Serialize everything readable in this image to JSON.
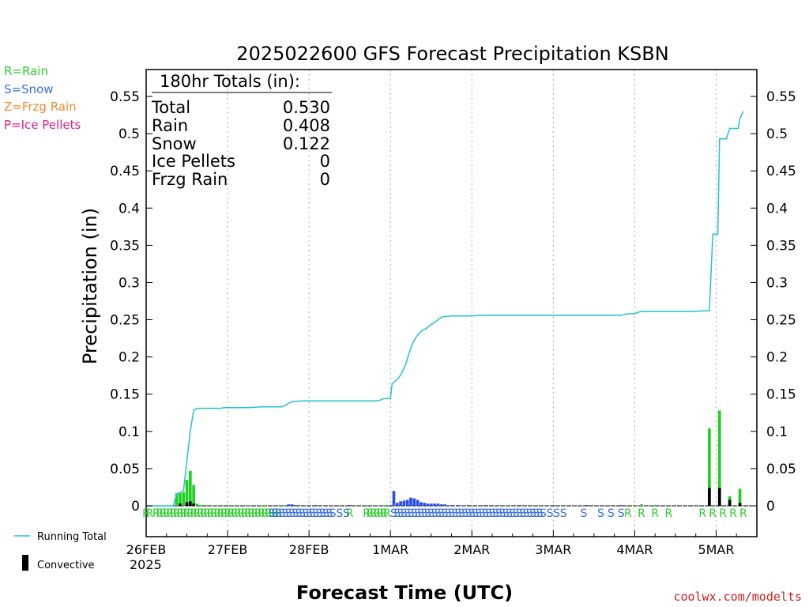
{
  "chart_data": {
    "type": "bar",
    "title": "2025022600 GFS Forecast Precipitation KSBN",
    "ylabel": "Precipitation (in)",
    "xlabel": "Forecast Time (UTC)",
    "credit": "coolwx.com/modelts",
    "ylim": [
      0,
      0.58
    ],
    "xlim_hours": [
      0,
      180
    ],
    "y_ticks": [
      "0",
      "0.05",
      "0.1",
      "0.15",
      "0.2",
      "0.25",
      "0.3",
      "0.35",
      "0.4",
      "0.45",
      "0.5",
      "0.55"
    ],
    "y_tick_values": [
      0,
      0.05,
      0.1,
      0.15,
      0.2,
      0.25,
      0.3,
      0.35,
      0.4,
      0.45,
      0.5,
      0.55
    ],
    "x_ticks": [
      {
        "label": "26FEB",
        "hour": 0
      },
      {
        "label": "27FEB",
        "hour": 24
      },
      {
        "label": "28FEB",
        "hour": 48
      },
      {
        "label": "1MAR",
        "hour": 72
      },
      {
        "label": "2MAR",
        "hour": 96
      },
      {
        "label": "3MAR",
        "hour": 120
      },
      {
        "label": "4MAR",
        "hour": 144
      },
      {
        "label": "5MAR",
        "hour": 168
      }
    ],
    "x_sub_label": "2025",
    "grid": "vertical dotted at day boundaries",
    "ptype_legend": [
      {
        "text": "R=Rain",
        "color": "#2ecc2e"
      },
      {
        "text": "S=Snow",
        "color": "#3a6fe0"
      },
      {
        "text": "Z=Frzg Rain",
        "color": "#f08a30"
      },
      {
        "text": "P=Ice Pellets",
        "color": "#e0208a"
      }
    ],
    "series_legend": [
      {
        "text": "Running Total",
        "color": "#22c3cf"
      },
      {
        "text": "Convective",
        "color": "#000000"
      }
    ],
    "totals": {
      "header": "180hr Totals (in):",
      "rows": [
        {
          "label": "Total",
          "value": "0.530"
        },
        {
          "label": "Rain",
          "value": "0.408"
        },
        {
          "label": "Snow",
          "value": "0.122"
        },
        {
          "label": "Ice Pellets",
          "value": "0"
        },
        {
          "label": "Frzg Rain",
          "value": "0"
        }
      ]
    },
    "series": [
      {
        "name": "Running Total",
        "color": "#22c3cf",
        "points": [
          [
            0,
            0
          ],
          [
            8,
            0
          ],
          [
            9,
            0.016
          ],
          [
            11,
            0.02
          ],
          [
            12,
            0.06
          ],
          [
            13,
            0.1
          ],
          [
            14,
            0.128
          ],
          [
            15,
            0.131
          ],
          [
            18,
            0.131
          ],
          [
            22,
            0.131
          ],
          [
            23,
            0.132
          ],
          [
            30,
            0.132
          ],
          [
            34,
            0.133
          ],
          [
            40,
            0.133
          ],
          [
            41,
            0.135
          ],
          [
            42,
            0.138
          ],
          [
            43,
            0.14
          ],
          [
            46,
            0.141
          ],
          [
            52,
            0.141
          ],
          [
            60,
            0.141
          ],
          [
            68,
            0.141
          ],
          [
            69,
            0.142
          ],
          [
            70,
            0.144
          ],
          [
            72,
            0.144
          ],
          [
            72.5,
            0.164
          ],
          [
            73.5,
            0.168
          ],
          [
            74.5,
            0.172
          ],
          [
            75.5,
            0.18
          ],
          [
            76.5,
            0.19
          ],
          [
            77.5,
            0.205
          ],
          [
            78.5,
            0.218
          ],
          [
            79.5,
            0.226
          ],
          [
            80.5,
            0.232
          ],
          [
            81.5,
            0.236
          ],
          [
            82.5,
            0.238
          ],
          [
            83.5,
            0.242
          ],
          [
            84.5,
            0.245
          ],
          [
            85.5,
            0.248
          ],
          [
            86.5,
            0.252
          ],
          [
            87.5,
            0.254
          ],
          [
            90,
            0.255
          ],
          [
            95,
            0.255
          ],
          [
            99,
            0.256
          ],
          [
            110,
            0.256
          ],
          [
            122,
            0.256
          ],
          [
            134,
            0.256
          ],
          [
            140,
            0.256
          ],
          [
            142,
            0.258
          ],
          [
            144,
            0.258
          ],
          [
            145,
            0.26
          ],
          [
            146,
            0.261
          ],
          [
            152,
            0.261
          ],
          [
            160,
            0.261
          ],
          [
            165,
            0.262
          ],
          [
            166,
            0.262
          ],
          [
            167,
            0.365
          ],
          [
            168.5,
            0.365
          ],
          [
            169,
            0.493
          ],
          [
            171,
            0.493
          ],
          [
            172,
            0.507
          ],
          [
            174.5,
            0.507
          ],
          [
            175,
            0.52
          ],
          [
            176,
            0.53
          ]
        ]
      }
    ],
    "bars": {
      "rain": [
        [
          9,
          0.017
        ],
        [
          10,
          0.017
        ],
        [
          11,
          0.018
        ],
        [
          12,
          0.035
        ],
        [
          13,
          0.047
        ],
        [
          14,
          0.028
        ],
        [
          15,
          0.003
        ],
        [
          16,
          0.001
        ],
        [
          18,
          0.001
        ],
        [
          20,
          0.001
        ],
        [
          25,
          0.001
        ],
        [
          30,
          0.001
        ],
        [
          35,
          0.001
        ],
        [
          40,
          0.001
        ],
        [
          70,
          0.001
        ],
        [
          71,
          0.001
        ],
        [
          130,
          0.001
        ],
        [
          144,
          0.001
        ],
        [
          146,
          0.002
        ],
        [
          150,
          0.001
        ],
        [
          166,
          0.104
        ],
        [
          169,
          0.128
        ],
        [
          172,
          0.013
        ],
        [
          175,
          0.023
        ]
      ],
      "snow": [
        [
          42,
          0.002
        ],
        [
          43,
          0.002
        ],
        [
          44,
          0.001
        ],
        [
          50,
          0.001
        ],
        [
          60,
          0.001
        ],
        [
          72,
          0.001
        ],
        [
          73,
          0.02
        ],
        [
          74,
          0.004
        ],
        [
          75,
          0.006
        ],
        [
          76,
          0.007
        ],
        [
          77,
          0.008
        ],
        [
          78,
          0.011
        ],
        [
          79,
          0.01
        ],
        [
          80,
          0.008
        ],
        [
          81,
          0.005
        ],
        [
          82,
          0.004
        ],
        [
          83,
          0.003
        ],
        [
          84,
          0.003
        ],
        [
          85,
          0.003
        ],
        [
          86,
          0.003
        ],
        [
          87,
          0.002
        ],
        [
          88,
          0.002
        ],
        [
          90,
          0.001
        ],
        [
          92,
          0.001
        ],
        [
          95,
          0.001
        ],
        [
          100,
          0.001
        ],
        [
          110,
          0.001
        ],
        [
          120,
          0.001
        ],
        [
          130,
          0.001
        ],
        [
          140,
          0.001
        ]
      ],
      "convective": [
        [
          10,
          0.003
        ],
        [
          12,
          0.005
        ],
        [
          13,
          0.006
        ],
        [
          14,
          0.003
        ],
        [
          166,
          0.024
        ],
        [
          169,
          0.024
        ],
        [
          172,
          0.008
        ],
        [
          175,
          0.004
        ]
      ]
    },
    "ptype_strip": [
      {
        "letter": "R",
        "hours": [
          0,
          1,
          3,
          4,
          5,
          6,
          7,
          8,
          9,
          10,
          11,
          12,
          13,
          14,
          15,
          16,
          17,
          18,
          19,
          20,
          21,
          22,
          23,
          24,
          25,
          26,
          27,
          28,
          29,
          30,
          31,
          32,
          33,
          34,
          35,
          36,
          37,
          38,
          39,
          60,
          65,
          66,
          67,
          68,
          69,
          70,
          71
        ]
      },
      {
        "letter": "S",
        "hours": [
          37,
          38,
          39,
          40,
          41,
          42,
          43,
          44,
          45,
          46,
          47,
          48,
          49,
          50,
          51,
          52,
          53,
          54,
          55,
          57,
          59,
          73,
          74,
          75,
          76,
          77,
          78,
          79,
          80,
          81,
          82,
          83,
          84,
          85,
          86,
          87,
          88,
          89,
          90,
          91,
          92,
          93,
          94,
          95,
          96,
          97,
          98,
          99,
          100,
          101,
          102,
          103,
          104,
          105,
          106,
          107,
          108,
          109,
          110,
          111,
          112,
          113,
          114,
          115,
          116,
          117,
          119,
          121,
          123,
          129,
          134,
          137,
          140
        ]
      },
      {
        "letter": "R",
        "hours": [
          142,
          146,
          150,
          154,
          164,
          167,
          170,
          173,
          176
        ]
      }
    ]
  }
}
